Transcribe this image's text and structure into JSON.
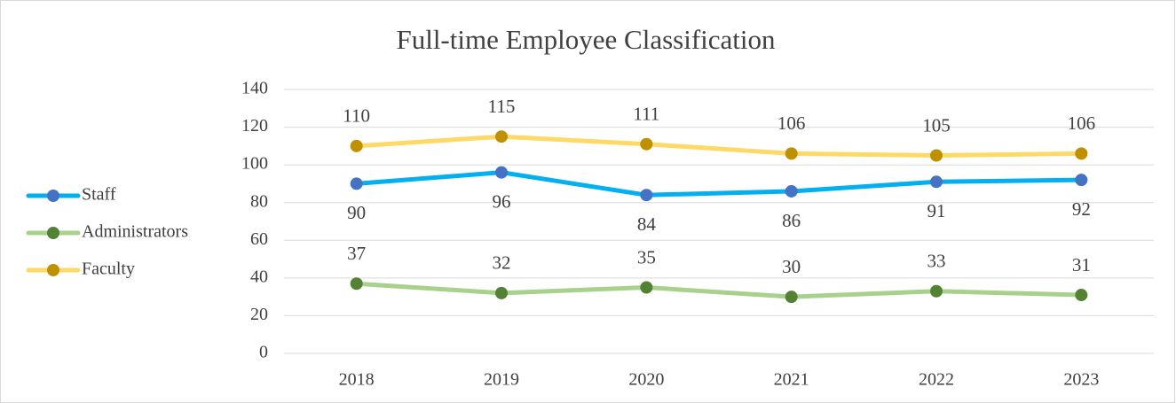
{
  "chart_data": {
    "type": "line",
    "title": "Full-time Employee Classification",
    "categories": [
      "2018",
      "2019",
      "2020",
      "2021",
      "2022",
      "2023"
    ],
    "series": [
      {
        "name": "Staff",
        "color": "#00b0f0",
        "marker_color": "#4472c4",
        "label_position": "below",
        "values": [
          90,
          96,
          84,
          86,
          91,
          92
        ]
      },
      {
        "name": "Administrators",
        "color": "#a9d18e",
        "marker_color": "#548235",
        "label_position": "above",
        "values": [
          37,
          32,
          35,
          30,
          33,
          31
        ]
      },
      {
        "name": "Faculty",
        "color": "#ffd966",
        "marker_color": "#bf9000",
        "label_position": "above",
        "values": [
          110,
          115,
          111,
          106,
          105,
          106
        ]
      }
    ],
    "ylim": [
      0,
      140
    ],
    "yticks": [
      0,
      20,
      40,
      60,
      80,
      100,
      120,
      140
    ],
    "grid": true,
    "legend": "left"
  }
}
